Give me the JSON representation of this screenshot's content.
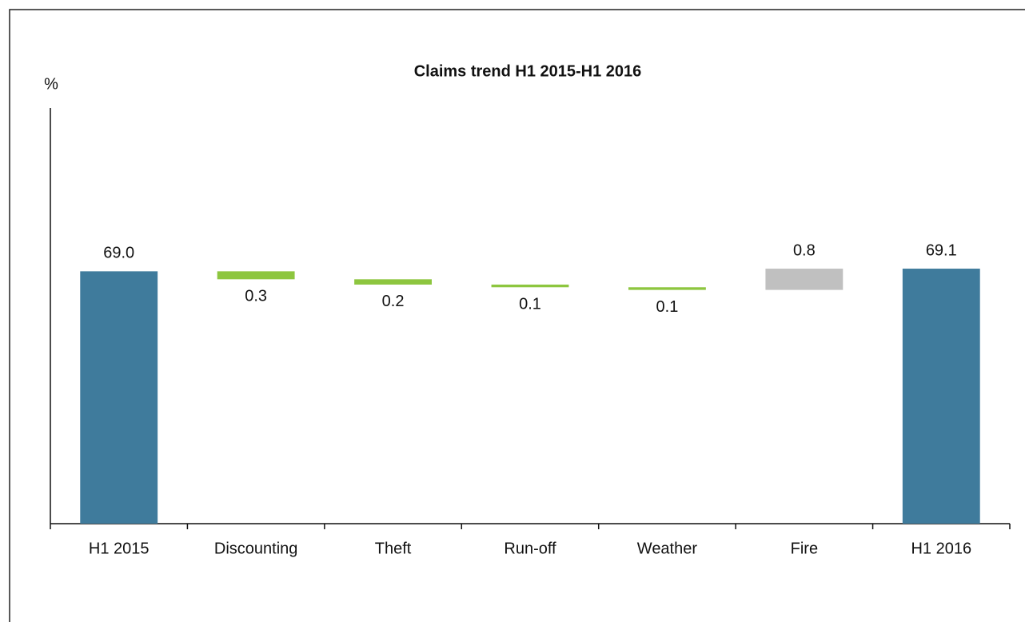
{
  "chart_data": {
    "type": "waterfall",
    "title": "Claims trend H1 2015-H1 2016",
    "y_label": "%",
    "categories": [
      "H1 2015",
      "Discounting",
      "Theft",
      "Run-off",
      "Weather",
      "Fire",
      "H1 2016"
    ],
    "values": [
      69.0,
      -0.3,
      -0.2,
      -0.1,
      -0.1,
      0.8,
      69.1
    ],
    "value_labels": [
      "69.0",
      "0.3",
      "0.2",
      "0.1",
      "0.1",
      "0.8",
      "69.1"
    ],
    "is_total": [
      true,
      false,
      false,
      false,
      false,
      false,
      true
    ],
    "total_color": "#3f7b9c",
    "decrease_color": "#8dc63f",
    "increase_color": "#c0c0c0",
    "ylim": [
      59.5,
      75
    ]
  }
}
